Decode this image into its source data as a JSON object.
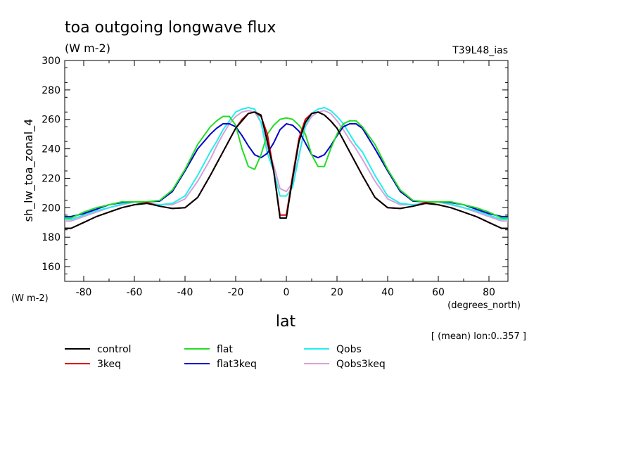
{
  "chart_data": {
    "type": "line",
    "title": "toa outgoing longwave flux",
    "units_top": "(W m-2)",
    "run_label": "T39L48_ias",
    "ylabel": "sh_lw_toa_zonal_4",
    "y_units": "(W m-2)",
    "xlabel": "lat",
    "x_units": "(degrees_north)",
    "footnote": "[ (mean) lon:0..357 ]",
    "xlim": [
      -87.5,
      87.5
    ],
    "ylim": [
      150,
      300
    ],
    "xticks": [
      "-80",
      "-60",
      "-40",
      "-20",
      "0",
      "20",
      "40",
      "60",
      "80"
    ],
    "yticks": [
      "160",
      "180",
      "200",
      "220",
      "240",
      "260",
      "280",
      "300"
    ],
    "grid": false,
    "legend_position": "bottom",
    "x": [
      -87.5,
      -85,
      -80,
      -75,
      -70,
      -65,
      -60,
      -55,
      -50,
      -45,
      -40,
      -35,
      -30,
      -27.5,
      -25,
      -22.5,
      -20,
      -17.5,
      -15,
      -12.5,
      -10,
      -7.5,
      -5,
      -2.5,
      0,
      2.5,
      5,
      7.5,
      10,
      12.5,
      15,
      17.5,
      20,
      22.5,
      25,
      27.5,
      30,
      35,
      40,
      45,
      50,
      55,
      60,
      65,
      70,
      75,
      80,
      85,
      87.5
    ],
    "series": [
      {
        "name": "control",
        "color": "#000000",
        "values": [
          186,
          186,
          190,
          194,
          197,
          200,
          202,
          203,
          201,
          199.5,
          200,
          207,
          222,
          230,
          238,
          246,
          254,
          259,
          264,
          265,
          263,
          245,
          225,
          193,
          193,
          220,
          245,
          258,
          264,
          265,
          263,
          259,
          254,
          246,
          238,
          230,
          222,
          207,
          200,
          199.5,
          201,
          203,
          202,
          200,
          197,
          194,
          190,
          186,
          186
        ]
      },
      {
        "name": "3keq",
        "color": "#dd0000",
        "values": [
          186,
          186,
          190,
          194,
          197,
          200,
          202,
          203.5,
          201,
          199.5,
          200,
          207,
          222,
          230,
          238,
          246,
          254,
          260,
          264,
          265,
          262,
          250,
          225,
          195,
          195,
          222,
          247,
          260,
          264,
          265,
          263,
          259,
          254,
          246,
          238,
          230,
          222,
          207,
          200,
          199.5,
          201,
          203.5,
          202,
          200,
          197,
          194,
          190,
          186,
          186
        ]
      },
      {
        "name": "flat",
        "color": "#22dd22",
        "values": [
          193,
          193,
          197,
          200,
          202,
          204,
          204,
          204,
          205,
          212,
          226,
          243,
          255,
          259,
          262,
          262,
          256,
          240,
          228,
          226,
          236,
          250,
          256,
          260,
          261,
          260,
          256,
          250,
          236,
          228,
          228,
          240,
          250,
          257,
          259,
          259,
          255,
          243,
          226,
          212,
          205,
          204,
          204,
          204,
          202,
          200,
          197,
          193,
          193
        ]
      },
      {
        "name": "flat3keq",
        "color": "#0000cc",
        "values": [
          194,
          194,
          196,
          199,
          202,
          203.5,
          204,
          204,
          204.5,
          211,
          225,
          240,
          250,
          254,
          257,
          257,
          255,
          249,
          242,
          236,
          234,
          237,
          244,
          253,
          257,
          256,
          252,
          244,
          236,
          234,
          236,
          242,
          249,
          255,
          257,
          257,
          254,
          240,
          225,
          211,
          204.5,
          204,
          204,
          203.5,
          202,
          199,
          196,
          194,
          194
        ]
      },
      {
        "name": "Qobs",
        "color": "#22eeee",
        "values": [
          192,
          192,
          195,
          198,
          200,
          202.5,
          204,
          203,
          202,
          203,
          208,
          222,
          238,
          245,
          253,
          259,
          265,
          267,
          268,
          267,
          258,
          237,
          225,
          208,
          208,
          214,
          235,
          256,
          264,
          267,
          268,
          266,
          262,
          257,
          250,
          243,
          238,
          222,
          208,
          203,
          202,
          203,
          204,
          202.5,
          200,
          198,
          195,
          192,
          192
        ]
      },
      {
        "name": "Qobs3keq",
        "color": "#d8a0d8",
        "values": [
          191,
          191,
          194,
          197,
          200,
          202,
          204,
          203,
          202,
          202,
          206,
          218,
          233,
          242,
          250,
          257,
          262,
          265,
          266,
          265,
          258,
          241,
          229,
          213,
          211,
          217,
          236,
          255,
          262,
          265,
          266,
          264,
          259,
          253,
          246,
          240,
          233,
          218,
          206,
          202,
          202,
          203,
          204,
          202,
          200,
          197,
          194,
          191,
          191
        ]
      }
    ]
  }
}
